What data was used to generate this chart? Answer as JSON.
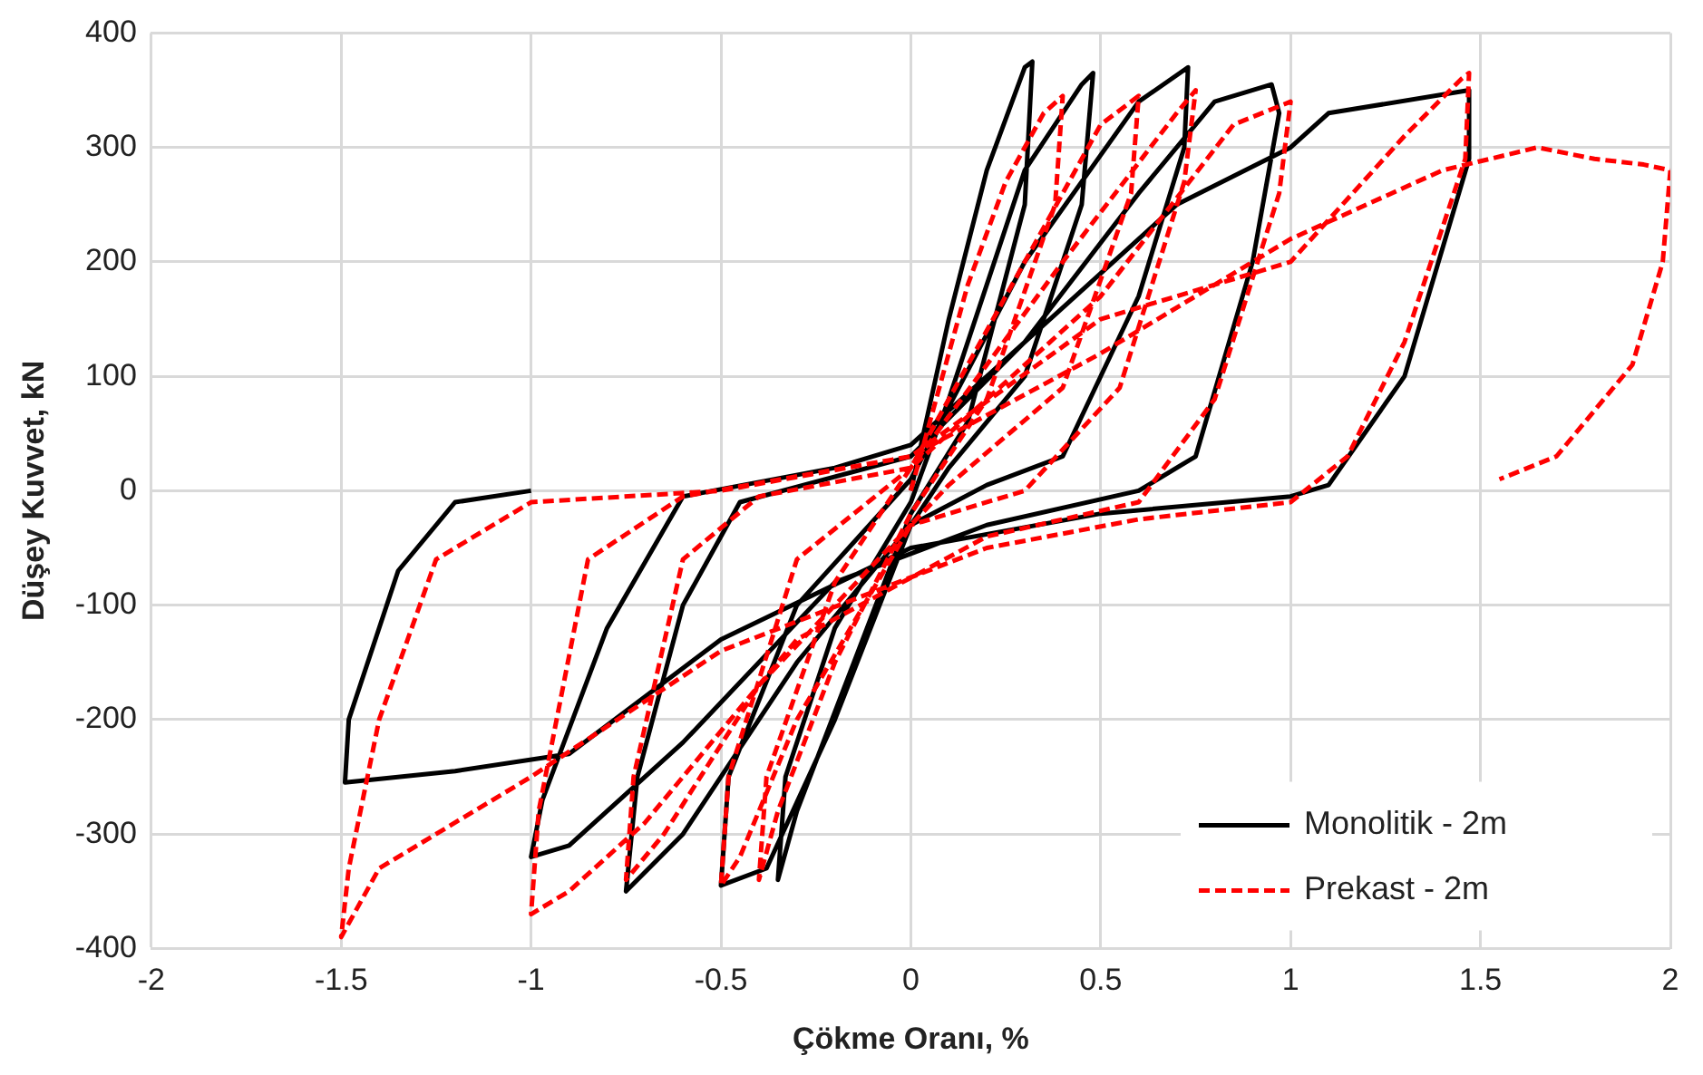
{
  "chart_data": {
    "type": "line",
    "xlabel": "Çökme Oranı, %",
    "ylabel": "Düşey Kuvvet, kN",
    "xlim": [
      -2,
      2
    ],
    "xticks": [
      -2,
      -1.5,
      -1,
      -0.5,
      0,
      0.5,
      1,
      1.5,
      2
    ],
    "ylim": [
      -400,
      400
    ],
    "yticks": [
      -400,
      -300,
      -200,
      -100,
      0,
      100,
      200,
      300,
      400
    ],
    "grid": true,
    "legend": "bottom right",
    "marker": "none",
    "series": [
      {
        "name": "Monolitik - 2m",
        "color": "#000000",
        "line_style": "solid",
        "x": [
          0,
          0.1,
          0.2,
          0.3,
          0.32,
          0.3,
          0.15,
          0,
          -0.15,
          -0.3,
          -0.35,
          -0.33,
          -0.2,
          0,
          0.1,
          0.3,
          0.45,
          0.48,
          0.45,
          0.3,
          0.1,
          0,
          -0.2,
          -0.38,
          -0.5,
          -0.48,
          -0.3,
          0,
          0.3,
          0.6,
          0.73,
          0.72,
          0.6,
          0.4,
          0.2,
          0,
          -0.3,
          -0.6,
          -0.75,
          -0.72,
          -0.6,
          -0.45,
          0,
          0.3,
          0.6,
          0.8,
          0.95,
          0.97,
          0.9,
          0.75,
          0.6,
          0.2,
          -0.2,
          -0.6,
          -0.9,
          -1,
          -0.97,
          -0.8,
          -0.6,
          -0.2,
          0,
          0.3,
          0.7,
          1,
          1.1,
          1.47,
          1.47,
          1.3,
          1.1,
          1,
          0.5,
          0,
          -0.5,
          -0.9,
          -1.2,
          -1.49,
          -1.48,
          -1.35,
          -1.2,
          -1
        ],
        "values": [
          0,
          150,
          280,
          370,
          375,
          250,
          60,
          -20,
          -150,
          -280,
          -340,
          -250,
          -120,
          -10,
          80,
          280,
          355,
          365,
          250,
          100,
          20,
          -30,
          -200,
          -330,
          -345,
          -250,
          -100,
          10,
          200,
          340,
          370,
          300,
          170,
          30,
          5,
          -30,
          -150,
          -300,
          -350,
          -250,
          -100,
          -10,
          30,
          130,
          260,
          340,
          355,
          330,
          200,
          30,
          0,
          -30,
          -80,
          -220,
          -310,
          -320,
          -270,
          -120,
          -5,
          20,
          40,
          130,
          250,
          300,
          330,
          350,
          290,
          100,
          5,
          -5,
          -20,
          -50,
          -130,
          -230,
          -245,
          -255,
          -200,
          -70,
          -10,
          0
        ]
      },
      {
        "name": "Prekast - 2m",
        "color": "#ff0000",
        "line_style": "dashed",
        "x": [
          0,
          0.15,
          0.25,
          0.35,
          0.4,
          0.38,
          0.2,
          0,
          -0.2,
          -0.35,
          -0.4,
          -0.38,
          -0.2,
          0,
          0.3,
          0.5,
          0.6,
          0.58,
          0.4,
          0.1,
          0,
          -0.3,
          -0.45,
          -0.5,
          -0.48,
          -0.3,
          0,
          0.4,
          0.7,
          0.75,
          0.72,
          0.55,
          0.3,
          0,
          -0.4,
          -0.65,
          -0.75,
          -0.73,
          -0.6,
          -0.4,
          0,
          0.5,
          0.85,
          1,
          0.97,
          0.8,
          0.6,
          0.2,
          -0.3,
          -0.7,
          -0.9,
          -1,
          -0.98,
          -0.85,
          -0.6,
          0,
          0.5,
          1,
          1.3,
          1.45,
          1.47,
          1.46,
          1.3,
          1.15,
          1,
          0.6,
          0.2,
          -0.5,
          -1,
          -1.4,
          -1.5,
          -1.48,
          -1.4,
          -1.25,
          -1,
          -0.5,
          0,
          0.5,
          1,
          1.4,
          1.65,
          1.8,
          1.93,
          2,
          1.98,
          1.9,
          1.7,
          1.55
        ],
        "values": [
          0,
          180,
          270,
          330,
          345,
          250,
          80,
          -20,
          -150,
          -280,
          -340,
          -250,
          -80,
          20,
          200,
          320,
          345,
          260,
          90,
          5,
          -30,
          -200,
          -320,
          -345,
          -250,
          -60,
          20,
          200,
          330,
          350,
          270,
          90,
          0,
          -30,
          -170,
          -300,
          -340,
          -250,
          -60,
          -5,
          20,
          170,
          320,
          340,
          260,
          80,
          -10,
          -40,
          -130,
          -290,
          -350,
          -370,
          -280,
          -60,
          -5,
          30,
          150,
          200,
          310,
          360,
          365,
          290,
          130,
          30,
          -10,
          -25,
          -50,
          -140,
          -250,
          -330,
          -390,
          -330,
          -200,
          -60,
          -10,
          0,
          30,
          120,
          220,
          280,
          300,
          290,
          285,
          280,
          200,
          110,
          30,
          10
        ]
      }
    ]
  }
}
